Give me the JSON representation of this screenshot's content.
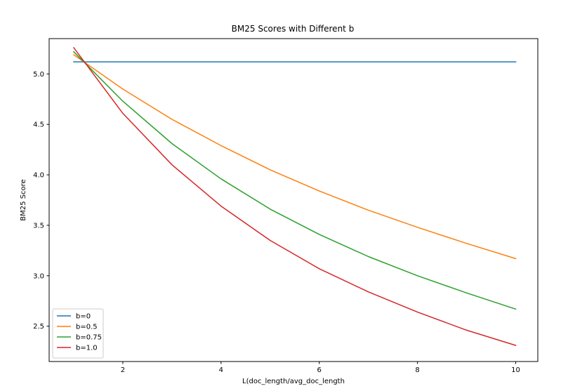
{
  "chart_data": {
    "type": "line",
    "title": "BM25 Scores with Different b",
    "xlabel": "L(doc_length/avg_doc_length",
    "ylabel": "BM25 Score",
    "xlim": [
      0.5,
      10.45
    ],
    "ylim": [
      2.15,
      5.35
    ],
    "xticks": [
      2,
      4,
      6,
      8,
      10
    ],
    "xtick_labels": [
      "2",
      "4",
      "6",
      "8",
      "10"
    ],
    "yticks": [
      2.5,
      3.0,
      3.5,
      4.0,
      4.5,
      5.0
    ],
    "ytick_labels": [
      "2.5",
      "3.0",
      "3.5",
      "4.0",
      "4.5",
      "5.0"
    ],
    "grid": false,
    "legend_position": "lower-left",
    "x": [
      1,
      2,
      3,
      4,
      5,
      6,
      7,
      8,
      9,
      10
    ],
    "series": [
      {
        "name": "b=0",
        "color": "#1f77b4",
        "values": [
          5.12,
          5.12,
          5.12,
          5.12,
          5.12,
          5.12,
          5.12,
          5.12,
          5.12,
          5.12
        ]
      },
      {
        "name": "b=0.5",
        "color": "#ff7f0e",
        "values": [
          5.19,
          4.85,
          4.55,
          4.29,
          4.05,
          3.84,
          3.65,
          3.48,
          3.32,
          3.17
        ]
      },
      {
        "name": "b=0.75",
        "color": "#2ca02c",
        "values": [
          5.22,
          4.73,
          4.31,
          3.96,
          3.66,
          3.41,
          3.19,
          3.0,
          2.83,
          2.67
        ]
      },
      {
        "name": "b=1.0",
        "color": "#d62728",
        "values": [
          5.26,
          4.61,
          4.1,
          3.69,
          3.35,
          3.07,
          2.84,
          2.64,
          2.46,
          2.31
        ]
      }
    ]
  }
}
